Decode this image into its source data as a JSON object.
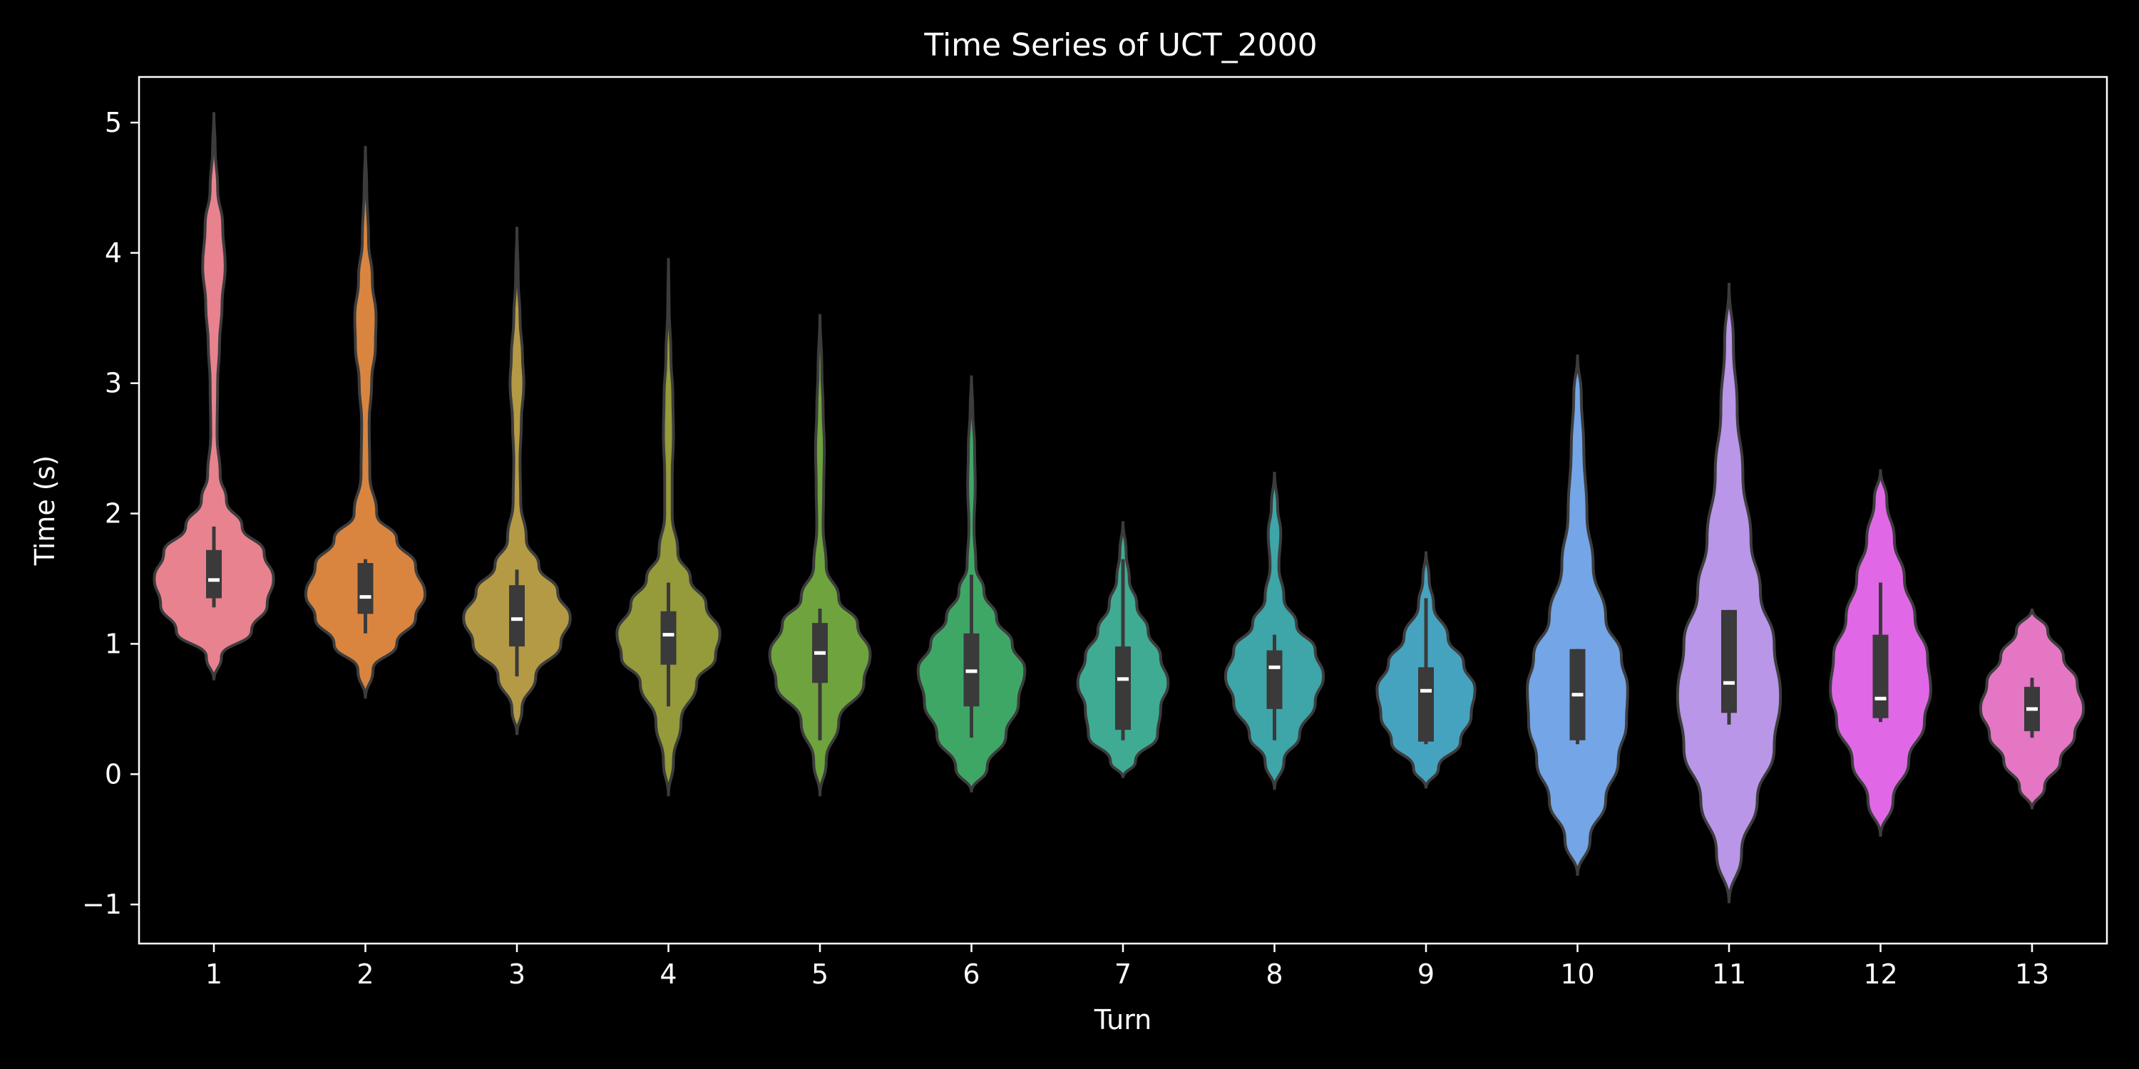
{
  "chart_data": {
    "type": "violin",
    "title": "Time Series of UCT_2000",
    "xlabel": "Turn",
    "ylabel": "Time (s)",
    "ylim": [
      -1.3,
      5.35
    ],
    "yticks": [
      -1,
      0,
      1,
      2,
      3,
      4,
      5
    ],
    "ytick_labels": [
      "−1",
      "0",
      "1",
      "2",
      "3",
      "4",
      "5"
    ],
    "categories": [
      "1",
      "2",
      "3",
      "4",
      "5",
      "6",
      "7",
      "8",
      "9",
      "10",
      "11",
      "12",
      "13"
    ],
    "colors": [
      "#e8828f",
      "#d98540",
      "#b59a45",
      "#959a3a",
      "#6fa33e",
      "#3fa766",
      "#3fab93",
      "#3ea5a8",
      "#46a3c0",
      "#74a5e6",
      "#b996e8",
      "#e068e6",
      "#e576c4"
    ],
    "violins": [
      {
        "category": "1",
        "profile": [
          [
            0.72,
            0.0
          ],
          [
            0.9,
            0.12
          ],
          [
            1.1,
            0.6
          ],
          [
            1.3,
            0.85
          ],
          [
            1.5,
            0.95
          ],
          [
            1.7,
            0.8
          ],
          [
            1.9,
            0.45
          ],
          [
            2.1,
            0.2
          ],
          [
            2.3,
            0.1
          ],
          [
            2.6,
            0.05
          ],
          [
            3.0,
            0.06
          ],
          [
            3.3,
            0.09
          ],
          [
            3.6,
            0.13
          ],
          [
            3.9,
            0.18
          ],
          [
            4.2,
            0.14
          ],
          [
            4.5,
            0.06
          ],
          [
            4.8,
            0.02
          ],
          [
            5.08,
            0.0
          ]
        ],
        "box": [
          1.35,
          1.72
        ],
        "whisker": [
          1.28,
          1.9
        ],
        "median": 1.49
      },
      {
        "category": "2",
        "profile": [
          [
            0.58,
            0.0
          ],
          [
            0.8,
            0.12
          ],
          [
            1.0,
            0.5
          ],
          [
            1.2,
            0.8
          ],
          [
            1.38,
            0.95
          ],
          [
            1.6,
            0.8
          ],
          [
            1.8,
            0.5
          ],
          [
            2.0,
            0.18
          ],
          [
            2.3,
            0.07
          ],
          [
            2.7,
            0.06
          ],
          [
            3.0,
            0.1
          ],
          [
            3.3,
            0.16
          ],
          [
            3.5,
            0.17
          ],
          [
            3.8,
            0.11
          ],
          [
            4.1,
            0.05
          ],
          [
            4.5,
            0.02
          ],
          [
            4.82,
            0.0
          ]
        ],
        "box": [
          1.23,
          1.62
        ],
        "whisker": [
          1.08,
          1.65
        ],
        "median": 1.36
      },
      {
        "category": "3",
        "profile": [
          [
            0.3,
            0.0
          ],
          [
            0.5,
            0.08
          ],
          [
            0.75,
            0.3
          ],
          [
            1.0,
            0.7
          ],
          [
            1.2,
            0.85
          ],
          [
            1.4,
            0.65
          ],
          [
            1.6,
            0.35
          ],
          [
            1.8,
            0.15
          ],
          [
            2.1,
            0.06
          ],
          [
            2.4,
            0.05
          ],
          [
            2.7,
            0.07
          ],
          [
            3.0,
            0.11
          ],
          [
            3.2,
            0.09
          ],
          [
            3.5,
            0.05
          ],
          [
            3.8,
            0.02
          ],
          [
            4.2,
            0.0
          ]
        ],
        "box": [
          0.98,
          1.45
        ],
        "whisker": [
          0.75,
          1.57
        ],
        "median": 1.19
      },
      {
        "category": "4",
        "profile": [
          [
            -0.17,
            0.0
          ],
          [
            0.1,
            0.08
          ],
          [
            0.4,
            0.2
          ],
          [
            0.7,
            0.45
          ],
          [
            0.9,
            0.75
          ],
          [
            1.08,
            0.82
          ],
          [
            1.3,
            0.6
          ],
          [
            1.5,
            0.35
          ],
          [
            1.7,
            0.15
          ],
          [
            2.0,
            0.06
          ],
          [
            2.3,
            0.06
          ],
          [
            2.6,
            0.08
          ],
          [
            2.9,
            0.07
          ],
          [
            3.2,
            0.04
          ],
          [
            3.6,
            0.01
          ],
          [
            3.96,
            0.0
          ]
        ],
        "box": [
          0.84,
          1.25
        ],
        "whisker": [
          0.52,
          1.47
        ],
        "median": 1.07
      },
      {
        "category": "5",
        "profile": [
          [
            -0.17,
            0.0
          ],
          [
            0.1,
            0.1
          ],
          [
            0.4,
            0.3
          ],
          [
            0.7,
            0.7
          ],
          [
            0.92,
            0.8
          ],
          [
            1.15,
            0.6
          ],
          [
            1.35,
            0.3
          ],
          [
            1.6,
            0.1
          ],
          [
            1.9,
            0.05
          ],
          [
            2.2,
            0.06
          ],
          [
            2.5,
            0.07
          ],
          [
            2.8,
            0.05
          ],
          [
            3.1,
            0.03
          ],
          [
            3.53,
            0.0
          ]
        ],
        "box": [
          0.7,
          1.16
        ],
        "whisker": [
          0.26,
          1.27
        ],
        "median": 0.93
      },
      {
        "category": "6",
        "profile": [
          [
            -0.14,
            0.0
          ],
          [
            0.05,
            0.25
          ],
          [
            0.3,
            0.55
          ],
          [
            0.55,
            0.75
          ],
          [
            0.8,
            0.85
          ],
          [
            1.0,
            0.65
          ],
          [
            1.2,
            0.4
          ],
          [
            1.4,
            0.2
          ],
          [
            1.6,
            0.07
          ],
          [
            1.9,
            0.04
          ],
          [
            2.2,
            0.06
          ],
          [
            2.5,
            0.05
          ],
          [
            2.8,
            0.02
          ],
          [
            3.06,
            0.0
          ]
        ],
        "box": [
          0.52,
          1.08
        ],
        "whisker": [
          0.28,
          1.53
        ],
        "median": 0.79
      },
      {
        "category": "7",
        "profile": [
          [
            -0.03,
            0.0
          ],
          [
            0.1,
            0.2
          ],
          [
            0.3,
            0.55
          ],
          [
            0.5,
            0.6
          ],
          [
            0.7,
            0.72
          ],
          [
            0.9,
            0.6
          ],
          [
            1.1,
            0.4
          ],
          [
            1.3,
            0.22
          ],
          [
            1.5,
            0.1
          ],
          [
            1.7,
            0.05
          ],
          [
            1.94,
            0.0
          ]
        ],
        "box": [
          0.34,
          0.98
        ],
        "whisker": [
          0.26,
          1.65
        ],
        "median": 0.73
      },
      {
        "category": "8",
        "profile": [
          [
            -0.12,
            0.0
          ],
          [
            0.1,
            0.15
          ],
          [
            0.3,
            0.4
          ],
          [
            0.55,
            0.65
          ],
          [
            0.75,
            0.78
          ],
          [
            0.95,
            0.65
          ],
          [
            1.15,
            0.35
          ],
          [
            1.35,
            0.15
          ],
          [
            1.6,
            0.07
          ],
          [
            1.85,
            0.1
          ],
          [
            2.05,
            0.05
          ],
          [
            2.32,
            0.0
          ]
        ],
        "box": [
          0.5,
          0.95
        ],
        "whisker": [
          0.26,
          1.07
        ],
        "median": 0.82
      },
      {
        "category": "9",
        "profile": [
          [
            -0.11,
            0.0
          ],
          [
            0.05,
            0.2
          ],
          [
            0.25,
            0.55
          ],
          [
            0.45,
            0.72
          ],
          [
            0.65,
            0.78
          ],
          [
            0.85,
            0.6
          ],
          [
            1.05,
            0.35
          ],
          [
            1.3,
            0.12
          ],
          [
            1.5,
            0.05
          ],
          [
            1.71,
            0.0
          ]
        ],
        "box": [
          0.25,
          0.82
        ],
        "whisker": [
          0.23,
          1.35
        ],
        "median": 0.64
      },
      {
        "category": "10",
        "profile": [
          [
            -0.78,
            0.0
          ],
          [
            -0.5,
            0.2
          ],
          [
            -0.2,
            0.45
          ],
          [
            0.1,
            0.65
          ],
          [
            0.4,
            0.78
          ],
          [
            0.65,
            0.8
          ],
          [
            0.9,
            0.7
          ],
          [
            1.2,
            0.45
          ],
          [
            1.6,
            0.25
          ],
          [
            2.0,
            0.15
          ],
          [
            2.5,
            0.1
          ],
          [
            2.9,
            0.06
          ],
          [
            3.22,
            0.0
          ]
        ],
        "box": [
          0.26,
          0.96
        ],
        "whisker": [
          0.23,
          0.96
        ],
        "median": 0.61
      },
      {
        "category": "11",
        "profile": [
          [
            -0.99,
            0.0
          ],
          [
            -0.6,
            0.2
          ],
          [
            -0.2,
            0.45
          ],
          [
            0.2,
            0.72
          ],
          [
            0.6,
            0.82
          ],
          [
            1.0,
            0.72
          ],
          [
            1.4,
            0.5
          ],
          [
            1.8,
            0.35
          ],
          [
            2.3,
            0.22
          ],
          [
            2.8,
            0.13
          ],
          [
            3.3,
            0.07
          ],
          [
            3.77,
            0.0
          ]
        ],
        "box": [
          0.47,
          1.26
        ],
        "whisker": [
          0.38,
          1.26
        ],
        "median": 0.7
      },
      {
        "category": "12",
        "profile": [
          [
            -0.48,
            0.0
          ],
          [
            -0.2,
            0.2
          ],
          [
            0.1,
            0.45
          ],
          [
            0.4,
            0.7
          ],
          [
            0.65,
            0.8
          ],
          [
            0.9,
            0.75
          ],
          [
            1.2,
            0.55
          ],
          [
            1.5,
            0.38
          ],
          [
            1.8,
            0.22
          ],
          [
            2.1,
            0.1
          ],
          [
            2.34,
            0.0
          ]
        ],
        "box": [
          0.43,
          1.07
        ],
        "whisker": [
          0.4,
          1.47
        ],
        "median": 0.58
      },
      {
        "category": "13",
        "profile": [
          [
            -0.27,
            0.0
          ],
          [
            -0.1,
            0.2
          ],
          [
            0.1,
            0.45
          ],
          [
            0.3,
            0.68
          ],
          [
            0.5,
            0.82
          ],
          [
            0.7,
            0.72
          ],
          [
            0.9,
            0.5
          ],
          [
            1.1,
            0.25
          ],
          [
            1.27,
            0.0
          ]
        ],
        "box": [
          0.33,
          0.67
        ],
        "whisker": [
          0.28,
          0.74
        ],
        "median": 0.5
      }
    ]
  }
}
